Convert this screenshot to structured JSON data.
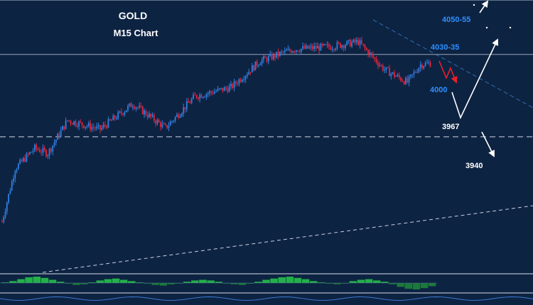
{
  "title": "GOLD",
  "subtitle": "M15 Chart",
  "colors": {
    "background": "#0d2342",
    "bull_candle": "#2f7fe0",
    "bear_candle": "#e0243c",
    "level_label_blue": "#2f8fff",
    "level_label_white": "#ffffff",
    "arrow_white": "#ffffff",
    "arrow_red": "#e8202a",
    "trendline": "#2f6fb0",
    "oscillator_up": "#23b04a",
    "oscillator_down": "#1a7a3a"
  },
  "chart_data": {
    "type": "candlestick",
    "title": "GOLD",
    "subtitle": "M15 Chart",
    "xlabel": "",
    "ylabel": "",
    "ylim": [
      3860,
      4075
    ],
    "grid": false,
    "price_path_anchors": [
      {
        "bar": 0,
        "price": 3900
      },
      {
        "bar": 8,
        "price": 3942
      },
      {
        "bar": 20,
        "price": 3958
      },
      {
        "bar": 28,
        "price": 3954
      },
      {
        "bar": 40,
        "price": 3980
      },
      {
        "bar": 60,
        "price": 3973
      },
      {
        "bar": 80,
        "price": 3993
      },
      {
        "bar": 100,
        "price": 3974
      },
      {
        "bar": 118,
        "price": 3999
      },
      {
        "bar": 140,
        "price": 4006
      },
      {
        "bar": 158,
        "price": 4027
      },
      {
        "bar": 178,
        "price": 4036
      },
      {
        "bar": 200,
        "price": 4038
      },
      {
        "bar": 218,
        "price": 4042
      },
      {
        "bar": 234,
        "price": 4020
      },
      {
        "bar": 248,
        "price": 4010
      },
      {
        "bar": 256,
        "price": 4024
      },
      {
        "bar": 262,
        "price": 4025
      }
    ],
    "levels": [
      {
        "label": "4050-55",
        "price": 4052,
        "style": "target",
        "color": "blue"
      },
      {
        "label": "4030-35",
        "price": 4032,
        "style": "solid",
        "color": "blue"
      },
      {
        "label": "4000",
        "price": 4006,
        "style": "target",
        "color": "blue"
      },
      {
        "label": "3967",
        "price": 3967,
        "style": "dashed",
        "color": "white"
      },
      {
        "label": "3940",
        "price": 3940,
        "style": "target",
        "color": "white"
      }
    ],
    "oscillator": {
      "type": "histogram",
      "series": [
        0.1,
        0.3,
        0.6,
        0.9,
        1.0,
        0.8,
        0.5,
        0.2,
        -0.1,
        -0.3,
        -0.2,
        0.1,
        0.4,
        0.6,
        0.7,
        0.5,
        0.3,
        0.1,
        -0.1,
        -0.3,
        -0.4,
        -0.2,
        0.0,
        0.2,
        0.4,
        0.5,
        0.4,
        0.2,
        0.0,
        -0.2,
        -0.3,
        -0.1,
        0.2,
        0.5,
        0.7,
        0.9,
        1.0,
        0.8,
        0.6,
        0.3,
        0.1,
        -0.1,
        -0.2,
        0.0,
        0.3,
        0.5,
        0.6,
        0.4,
        0.2,
        -0.2,
        -0.6,
        -0.9,
        -1.0,
        -0.8,
        -0.5
      ]
    }
  }
}
